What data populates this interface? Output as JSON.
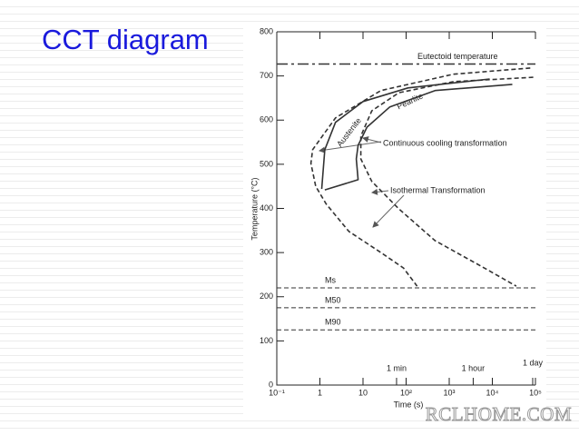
{
  "slide_title": "CCT diagram",
  "watermark": "RCLHOME.COM",
  "chart_data": {
    "type": "line",
    "xlabel": "Time (s)",
    "ylabel": "Temperature (°C)",
    "xscale": "log",
    "xlim": [
      0.1,
      100000
    ],
    "ylim": [
      0,
      800
    ],
    "xticks": [
      {
        "value": 0.1,
        "label": "10⁻¹"
      },
      1,
      10,
      {
        "value": 100,
        "label": "10²"
      },
      {
        "value": 1000,
        "label": "10³"
      },
      {
        "value": 10000,
        "label": "10⁴"
      },
      {
        "value": 100000,
        "label": "10⁵"
      }
    ],
    "yticks": [
      0,
      100,
      200,
      300,
      400,
      500,
      600,
      700,
      800
    ],
    "time_marks": [
      {
        "value": 60,
        "label": "1 min"
      },
      {
        "value": 3600,
        "label": "1 hour"
      },
      {
        "value": 86400,
        "label": "1 day"
      }
    ],
    "hlines": [
      {
        "value": 727,
        "label": "Eutectoid temperature",
        "style": "dashdot"
      },
      {
        "value": 220,
        "label": "Ms",
        "style": "dashed"
      },
      {
        "value": 175,
        "label": "M50",
        "style": "dashed"
      },
      {
        "value": 125,
        "label": "M90",
        "style": "dashed"
      }
    ],
    "annotations": [
      "Austenite",
      "Pearlite",
      "Continuous cooling transformation",
      "Isothermal Transformation"
    ],
    "series": [
      {
        "style": "dashed",
        "color": "#333",
        "x": [
          76000,
          1250,
          26,
          2.3,
          0.68,
          0.62,
          0.8,
          1.4,
          4.7,
          26,
          87,
          180
        ],
        "y": [
          718,
          704,
          667,
          605,
          533,
          502,
          450,
          410,
          348,
          300,
          265,
          224
        ]
      },
      {
        "style": "solid",
        "color": "#333",
        "x": [
          8700,
          110,
          10,
          2.3,
          1.3,
          1.1
        ],
        "y": [
          693,
          673,
          642,
          595,
          533,
          444
        ]
      },
      {
        "style": "solid",
        "color": "#333",
        "x": [
          29000,
          470,
          42,
          12.4,
          7.7,
          7.0,
          7.7,
          1.3
        ],
        "y": [
          681,
          667,
          630,
          584,
          543,
          512,
          465,
          442
        ]
      },
      {
        "style": "dashed",
        "color": "#333",
        "x": [
          89000,
          1250,
          68,
          16,
          8.9,
          8.9,
          16,
          68,
          470,
          5300,
          36000
        ],
        "y": [
          697,
          687,
          662,
          621,
          564,
          512,
          461,
          399,
          327,
          270,
          224
        ]
      }
    ]
  }
}
